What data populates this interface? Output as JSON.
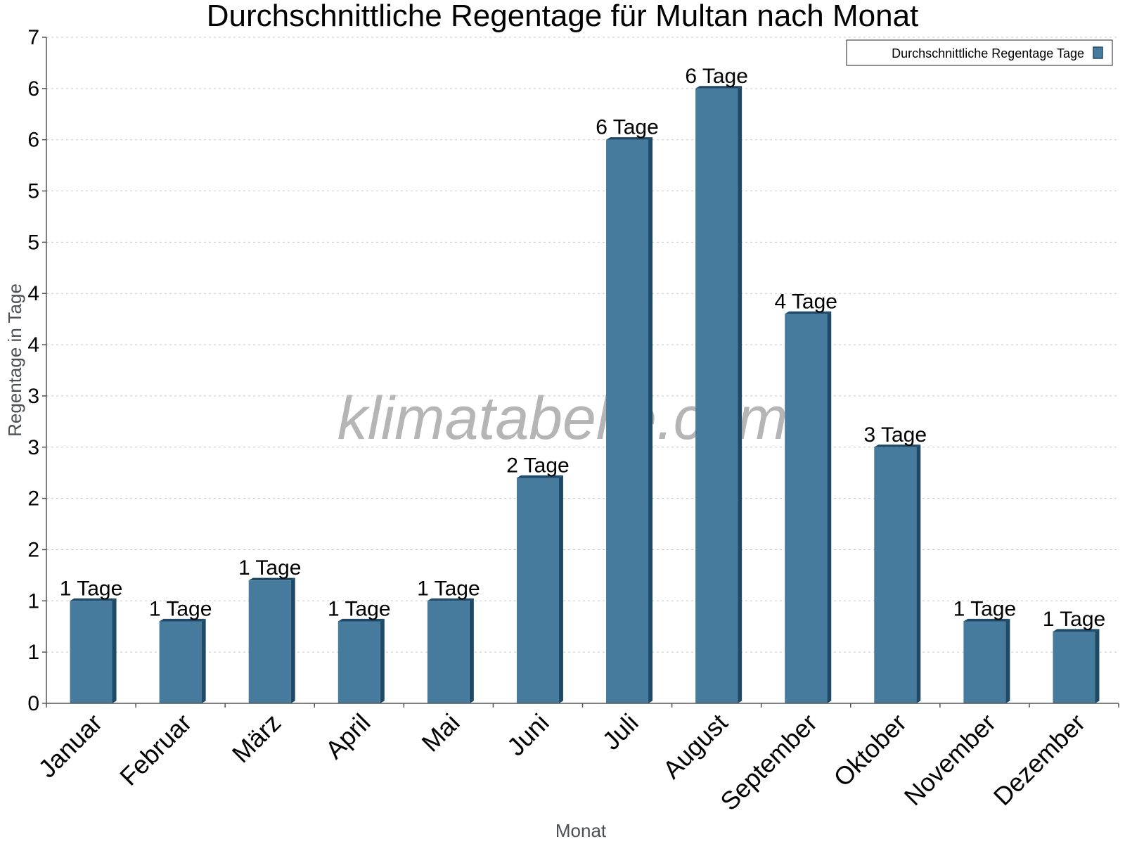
{
  "chart_data": {
    "type": "bar",
    "title": "Durchschnittliche Regentage für Multan nach Monat",
    "xlabel": "Monat",
    "ylabel": "Regentage in Tage",
    "categories": [
      "Januar",
      "Februar",
      "März",
      "April",
      "Mai",
      "Juni",
      "Juli",
      "August",
      "September",
      "Oktober",
      "November",
      "Dezember"
    ],
    "series": [
      {
        "name": "Durchschnittliche Regentage Tage",
        "values": [
          1.0,
          0.8,
          1.2,
          0.8,
          1.0,
          2.2,
          5.5,
          6.0,
          3.8,
          2.5,
          0.8,
          0.7
        ],
        "labels": [
          "1 Tage",
          "1 Tage",
          "1 Tage",
          "1 Tage",
          "1 Tage",
          "2 Tage",
          "6 Tage",
          "6 Tage",
          "4 Tage",
          "3 Tage",
          "1 Tage",
          "1 Tage"
        ]
      }
    ],
    "ylim": [
      0,
      6.5
    ],
    "ytick_values": [
      0,
      0.5,
      1,
      1.5,
      2,
      2.5,
      3,
      3.5,
      4,
      4.5,
      5,
      5.5,
      6,
      6.5
    ],
    "ytick_labels": [
      "0",
      "1",
      "1",
      "2",
      "2",
      "3",
      "3",
      "4",
      "4",
      "5",
      "5",
      "6",
      "6",
      "7"
    ],
    "grid": true,
    "legend_position": "top-right",
    "bar_color": "#467b9d",
    "bar_shadow_color": "#1e4a68",
    "watermark": "klimatabelle.com"
  }
}
